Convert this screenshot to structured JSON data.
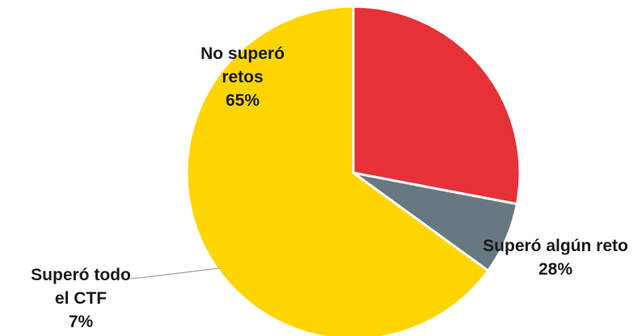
{
  "chart_data": {
    "type": "pie",
    "title": "",
    "start_angle_deg": 90,
    "direction": "clockwise",
    "slices": [
      {
        "name": "Superó algún reto",
        "value": 28,
        "percent_label": "28%",
        "color": "#e63138"
      },
      {
        "name": "Superó todo el CTF",
        "value": 7,
        "percent_label": "7%",
        "color": "#687880"
      },
      {
        "name": "No superó retos",
        "value": 65,
        "percent_label": "65%",
        "color": "#ffd500"
      }
    ],
    "labels": {
      "no_supero": {
        "line1": "No superó",
        "line2": "retos",
        "pct": "65%"
      },
      "supero_algun": {
        "line1": "Superó algún reto",
        "pct": "28%"
      },
      "supero_todo": {
        "line1": "Superó todo",
        "line2": "el CTF",
        "pct": "7%"
      }
    },
    "legend": "none",
    "slice_border_color": "#ffffff",
    "leader_line_color": "#a6a6a6"
  }
}
